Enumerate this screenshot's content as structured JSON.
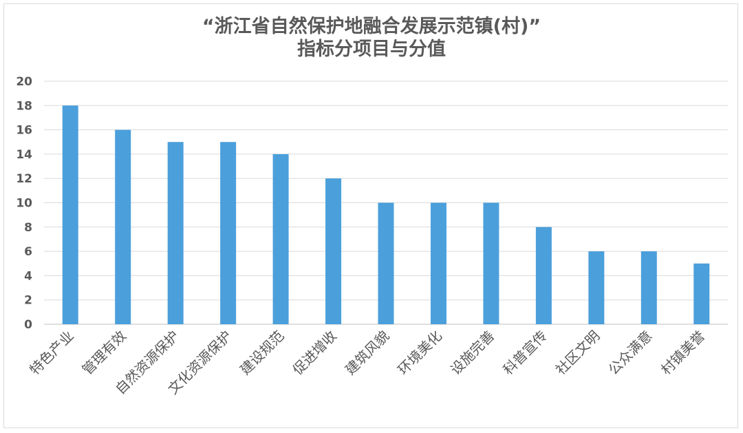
{
  "chart_data": {
    "type": "bar",
    "title": "“浙江省自然保护地融合发展示范镇(村)”",
    "subtitle": "指标分项目与分值",
    "xlabel": "",
    "ylabel": "",
    "ylim": [
      0,
      20
    ],
    "yticks": [
      0,
      2,
      4,
      6,
      8,
      10,
      12,
      14,
      16,
      18,
      20
    ],
    "grid": true,
    "bar_color": "#4b9fdb",
    "categories": [
      "特色产业",
      "管理有效",
      "自然资源保护",
      "文化资源保护",
      "建设规范",
      "促进增收",
      "建筑风貌",
      "环境美化",
      "设施完善",
      "科普宣传",
      "社区文明",
      "公众满意",
      "村镇美誉"
    ],
    "values": [
      18,
      16,
      15,
      15,
      14,
      12,
      10,
      10,
      10,
      8,
      6,
      6,
      5
    ]
  }
}
